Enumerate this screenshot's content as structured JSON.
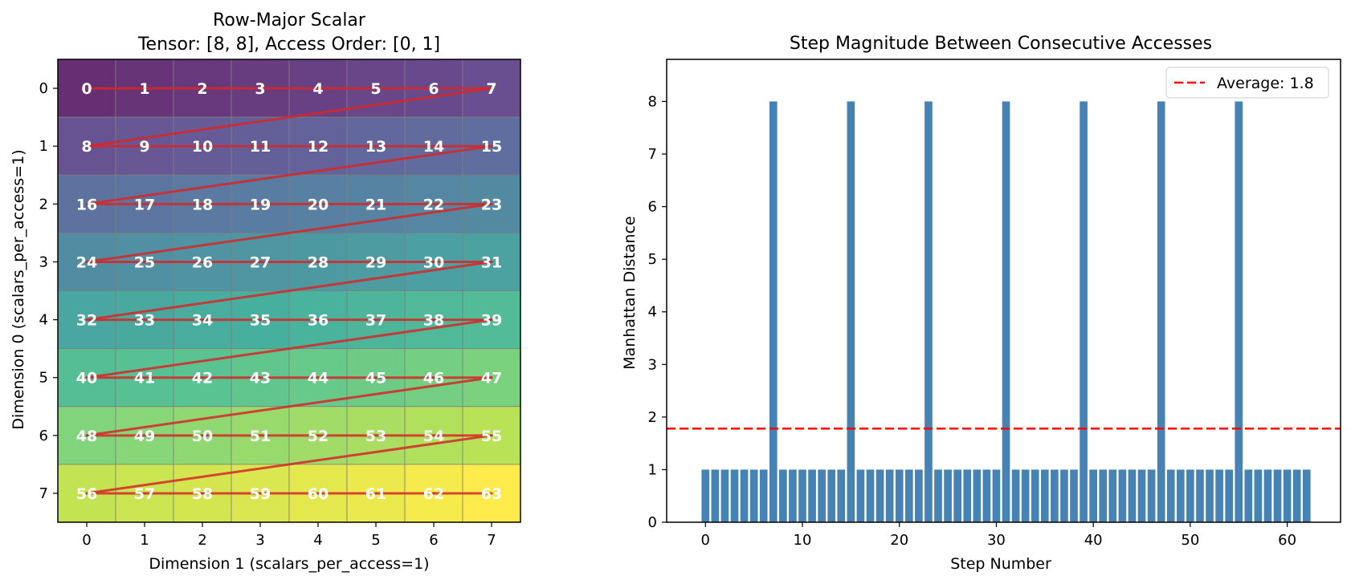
{
  "chart_data": [
    {
      "type": "heatmap",
      "title_line1": "Row-Major Scalar",
      "title_line2": "Tensor: [8, 8], Access Order: [0, 1]",
      "xlabel": "Dimension 1 (scalars_per_access=1)",
      "ylabel": "Dimension 0 (scalars_per_access=1)",
      "x_ticks": [
        0,
        1,
        2,
        3,
        4,
        5,
        6,
        7
      ],
      "y_ticks": [
        0,
        1,
        2,
        3,
        4,
        5,
        6,
        7
      ],
      "rows": 8,
      "cols": 8,
      "colormap": "viridis",
      "cell_values": [
        [
          0,
          1,
          2,
          3,
          4,
          5,
          6,
          7
        ],
        [
          8,
          9,
          10,
          11,
          12,
          13,
          14,
          15
        ],
        [
          16,
          17,
          18,
          19,
          20,
          21,
          22,
          23
        ],
        [
          24,
          25,
          26,
          27,
          28,
          29,
          30,
          31
        ],
        [
          32,
          33,
          34,
          35,
          36,
          37,
          38,
          39
        ],
        [
          40,
          41,
          42,
          43,
          44,
          45,
          46,
          47
        ],
        [
          48,
          49,
          50,
          51,
          52,
          53,
          54,
          55
        ],
        [
          56,
          57,
          58,
          59,
          60,
          61,
          62,
          63
        ]
      ],
      "path_color": "#d62728",
      "path_description_order": "row-major"
    },
    {
      "type": "bar",
      "title": "Step Magnitude Between Consecutive Accesses",
      "xlabel": "Step Number",
      "ylabel": "Manhattan Distance",
      "x_ticks": [
        0,
        10,
        20,
        30,
        40,
        50,
        60
      ],
      "y_ticks": [
        0,
        1,
        2,
        3,
        4,
        5,
        6,
        7,
        8
      ],
      "xlim": [
        -4,
        65.5
      ],
      "ylim": [
        0,
        8.8
      ],
      "bar_color": "#4682b4",
      "values": [
        1,
        1,
        1,
        1,
        1,
        1,
        1,
        8,
        1,
        1,
        1,
        1,
        1,
        1,
        1,
        8,
        1,
        1,
        1,
        1,
        1,
        1,
        1,
        8,
        1,
        1,
        1,
        1,
        1,
        1,
        1,
        8,
        1,
        1,
        1,
        1,
        1,
        1,
        1,
        8,
        1,
        1,
        1,
        1,
        1,
        1,
        1,
        8,
        1,
        1,
        1,
        1,
        1,
        1,
        1,
        8,
        1,
        1,
        1,
        1,
        1,
        1,
        1
      ],
      "average": 1.78,
      "average_color": "#ff0000",
      "legend": {
        "label": "Average: 1.8",
        "position": "top-right"
      }
    }
  ]
}
